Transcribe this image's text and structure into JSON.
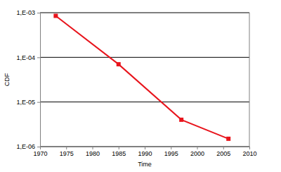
{
  "chart_data": {
    "type": "line",
    "x_label": "Time",
    "y_label": "CDF",
    "x": [
      1973,
      1985,
      1997,
      2006
    ],
    "series": [
      {
        "values": [
          0.00085,
          7e-05,
          4e-06,
          1.5e-06
        ],
        "color": "#e8141c",
        "marker": "square"
      }
    ],
    "xlim": [
      1970,
      2010
    ],
    "xticks": [
      1970,
      1975,
      1980,
      1985,
      1990,
      1995,
      2000,
      2005,
      2010
    ],
    "ylim": [
      1e-06,
      0.001
    ],
    "yticks": [
      {
        "value": 1e-06,
        "label": "1,E-06"
      },
      {
        "value": 1e-05,
        "label": "1,E-05"
      },
      {
        "value": 0.0001,
        "label": "1,E-04"
      },
      {
        "value": 0.001,
        "label": "1,E-03"
      }
    ],
    "log": "y",
    "grid": true
  }
}
